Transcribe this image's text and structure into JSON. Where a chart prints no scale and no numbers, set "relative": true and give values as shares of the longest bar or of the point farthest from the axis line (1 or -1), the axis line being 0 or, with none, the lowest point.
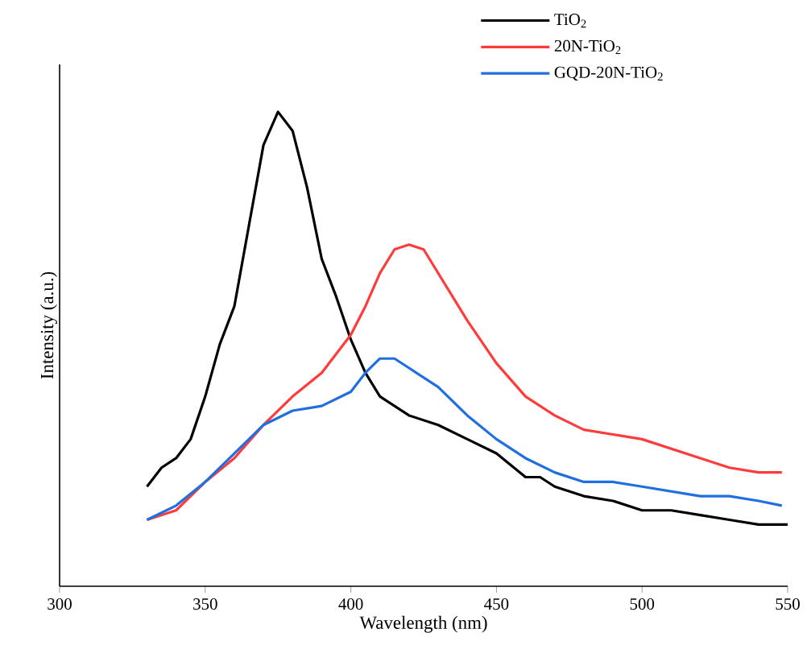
{
  "chart_data": {
    "type": "line",
    "xlabel": "Wavelength (nm)",
    "ylabel": "Intensity (a.u.)",
    "relative": true,
    "xlim": [
      300,
      550
    ],
    "xticks": [
      300,
      350,
      400,
      450,
      500,
      550
    ],
    "legend": "top right",
    "grid": false,
    "marker": "none",
    "line_style": "solid",
    "series": [
      {
        "name": "TiO$_{2}$",
        "color": "#000000",
        "x": [
          330,
          335,
          340,
          345,
          350,
          355,
          360,
          365,
          370,
          375,
          380,
          385,
          390,
          395,
          400,
          405,
          410,
          415,
          420,
          430,
          440,
          450,
          460,
          465,
          470,
          480,
          490,
          500,
          510,
          520,
          530,
          540,
          550
        ],
        "values": [
          0.21,
          0.25,
          0.27,
          0.31,
          0.4,
          0.51,
          0.59,
          0.76,
          0.93,
          1.0,
          0.96,
          0.84,
          0.69,
          0.61,
          0.52,
          0.45,
          0.4,
          0.38,
          0.36,
          0.34,
          0.31,
          0.28,
          0.23,
          0.23,
          0.21,
          0.19,
          0.18,
          0.16,
          0.16,
          0.15,
          0.14,
          0.13,
          0.13
        ]
      },
      {
        "name": "20N-TiO$_{2}$",
        "color": "#ff3b3b",
        "x": [
          330,
          340,
          350,
          360,
          370,
          380,
          390,
          400,
          405,
          410,
          415,
          420,
          425,
          430,
          440,
          450,
          460,
          470,
          480,
          490,
          500,
          510,
          520,
          530,
          540,
          548
        ],
        "values": [
          0.14,
          0.16,
          0.22,
          0.27,
          0.34,
          0.4,
          0.45,
          0.53,
          0.59,
          0.66,
          0.71,
          0.72,
          0.71,
          0.66,
          0.56,
          0.47,
          0.4,
          0.36,
          0.33,
          0.32,
          0.31,
          0.29,
          0.27,
          0.25,
          0.24,
          0.24
        ]
      },
      {
        "name": "GQD-20N-TiO$_{2}$",
        "color": "#1f6fe0",
        "x": [
          330,
          340,
          350,
          360,
          370,
          380,
          390,
          400,
          405,
          410,
          415,
          420,
          430,
          440,
          450,
          460,
          470,
          480,
          490,
          500,
          510,
          520,
          530,
          540,
          548
        ],
        "values": [
          0.14,
          0.17,
          0.22,
          0.28,
          0.34,
          0.37,
          0.38,
          0.41,
          0.45,
          0.48,
          0.48,
          0.46,
          0.42,
          0.36,
          0.31,
          0.27,
          0.24,
          0.22,
          0.22,
          0.21,
          0.2,
          0.19,
          0.19,
          0.18,
          0.17
        ]
      }
    ]
  }
}
